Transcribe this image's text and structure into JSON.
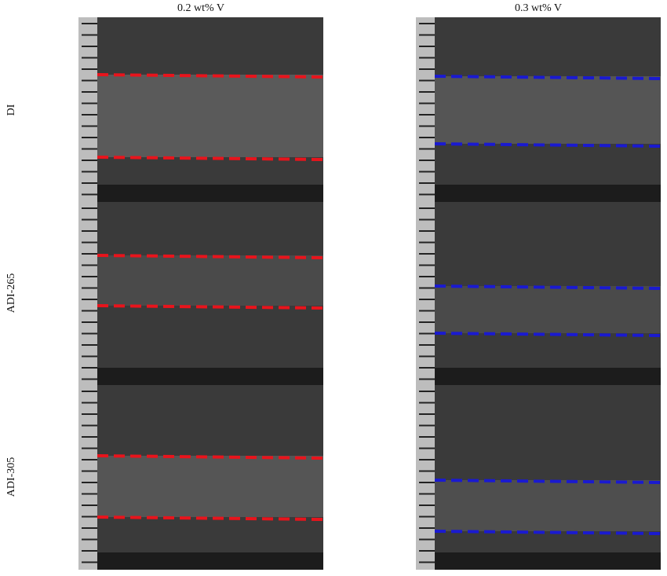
{
  "columns": [
    "0.2 wt% V",
    "0.3 wt% V"
  ],
  "rows": [
    "DI",
    "ADI-265",
    "ADI-305"
  ]
}
